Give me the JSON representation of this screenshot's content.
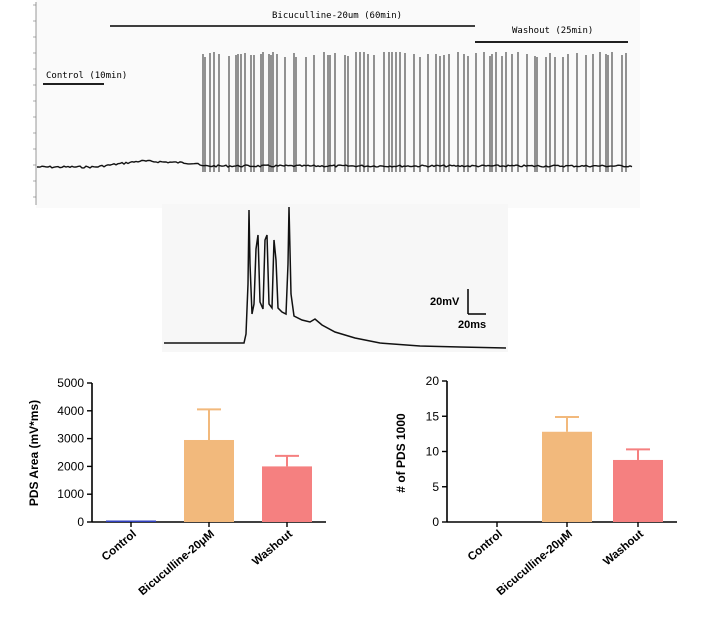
{
  "colors": {
    "trace": "#111111",
    "bicuculline_bar": "#f2b97c",
    "washout_bar": "#f58080",
    "control_bar": "#3040c0",
    "axis": "#000000"
  },
  "trace_panel": {
    "period_labels": {
      "control": "Control (10min)",
      "bicuculline": "Bicuculline-20um (60min)",
      "washout": "Washout (25min)"
    }
  },
  "zoom_panel": {
    "scale_y": "20mV",
    "scale_x": "20ms"
  },
  "chart_data": [
    {
      "type": "bar",
      "categories": [
        "Control",
        "Bicuculline-20μM",
        "Washout"
      ],
      "values": [
        20,
        2950,
        2000
      ],
      "errors": [
        0,
        1100,
        380
      ],
      "ylabel": "PDS Area (mV*ms)",
      "xlabel": "",
      "title": "",
      "ylim": [
        0,
        5000
      ],
      "yticks": [
        0,
        1000,
        2000,
        3000,
        4000,
        5000
      ],
      "grid": false
    },
    {
      "type": "bar",
      "categories": [
        "Control",
        "Bicuculline-20μM",
        "Washout"
      ],
      "values": [
        0,
        12.8,
        8.8
      ],
      "errors": [
        0,
        2.1,
        1.5
      ],
      "ylabel": "# of PDS 1000",
      "xlabel": "",
      "title": "",
      "ylim": [
        0,
        20
      ],
      "yticks": [
        0,
        5,
        10,
        15,
        20
      ],
      "grid": false
    }
  ]
}
